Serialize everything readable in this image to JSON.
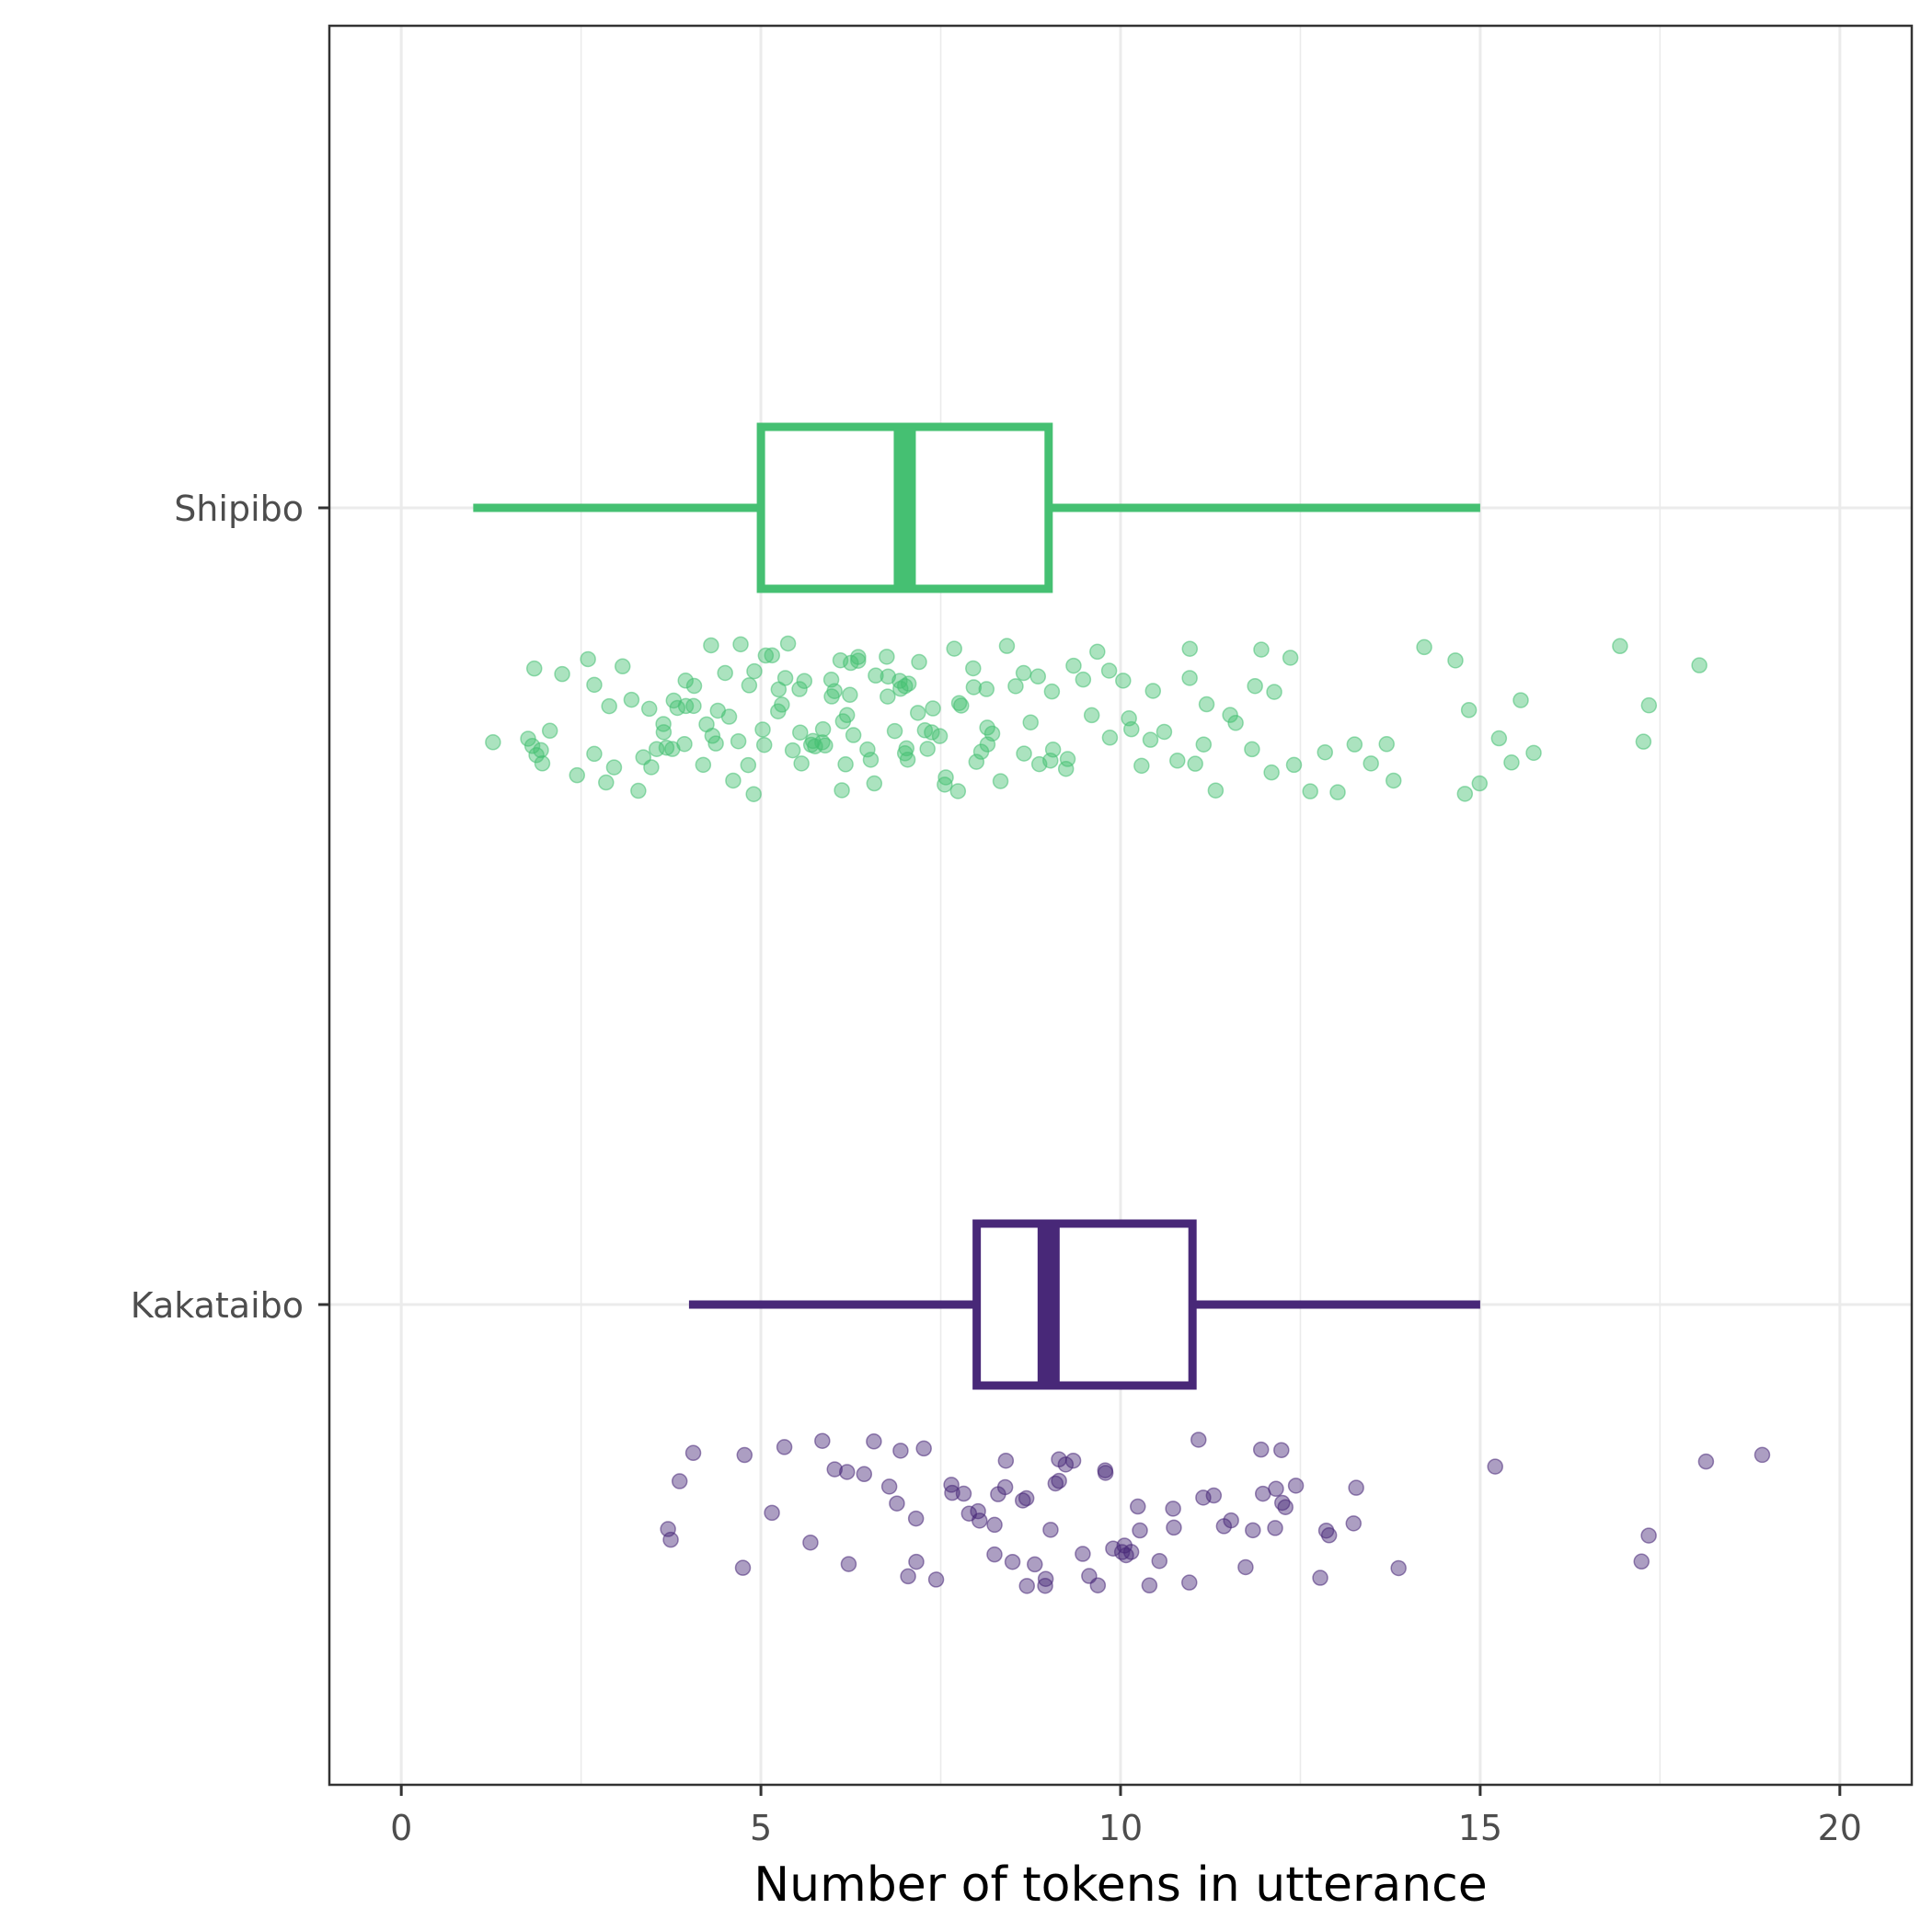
{
  "chart_data": {
    "type": "boxplot",
    "orientation": "horizontal",
    "xlabel": "Number of tokens in utterance",
    "ylabel": "",
    "xlim": [
      -1,
      21
    ],
    "x_ticks": [
      0,
      5,
      10,
      15,
      20
    ],
    "x_tick_labels": [
      "0",
      "5",
      "10",
      "15",
      "20"
    ],
    "grid": true,
    "legend": "none",
    "categories": [
      "Shipibo",
      "Kakataibo"
    ],
    "series": [
      {
        "name": "Shipibo",
        "color": "#45c072",
        "box": {
          "whisker_low": 1,
          "q1": 5,
          "median": 7,
          "q3": 9,
          "whisker_high": 15
        },
        "jitter_points": [
          1.3,
          1.7,
          1.8,
          1.8,
          1.9,
          1.9,
          2.0,
          2.1,
          2.2,
          2.4,
          2.6,
          2.7,
          2.7,
          2.8,
          2.9,
          3.0,
          3.1,
          3.2,
          3.3,
          3.4,
          3.4,
          3.5,
          3.6,
          3.6,
          3.7,
          3.7,
          3.8,
          3.8,
          3.9,
          3.9,
          4.0,
          4.0,
          4.1,
          4.1,
          4.2,
          4.2,
          4.3,
          4.3,
          4.4,
          4.4,
          4.5,
          4.5,
          4.6,
          4.7,
          4.7,
          4.8,
          4.8,
          4.9,
          4.9,
          5.0,
          5.0,
          5.1,
          5.1,
          5.2,
          5.2,
          5.3,
          5.3,
          5.4,
          5.4,
          5.5,
          5.5,
          5.6,
          5.6,
          5.7,
          5.7,
          5.8,
          5.8,
          5.9,
          5.9,
          6.0,
          6.0,
          6.0,
          6.1,
          6.1,
          6.1,
          6.2,
          6.2,
          6.2,
          6.3,
          6.3,
          6.4,
          6.4,
          6.5,
          6.5,
          6.6,
          6.6,
          6.7,
          6.7,
          6.8,
          6.8,
          6.9,
          6.9,
          7.0,
          7.0,
          7.0,
          7.1,
          7.1,
          7.2,
          7.2,
          7.3,
          7.3,
          7.4,
          7.4,
          7.5,
          7.5,
          7.6,
          7.7,
          7.7,
          7.8,
          7.8,
          7.9,
          7.9,
          8.0,
          8.0,
          8.1,
          8.1,
          8.2,
          8.2,
          8.3,
          8.4,
          8.5,
          8.6,
          8.7,
          8.7,
          8.8,
          8.9,
          9.0,
          9.0,
          9.1,
          9.2,
          9.3,
          9.4,
          9.5,
          9.6,
          9.7,
          9.8,
          9.9,
          10.0,
          10.1,
          10.2,
          10.3,
          10.4,
          10.5,
          10.6,
          10.8,
          10.9,
          11.0,
          11.0,
          11.1,
          11.2,
          11.3,
          11.5,
          11.6,
          11.8,
          11.9,
          12.0,
          12.1,
          12.2,
          12.3,
          12.4,
          12.6,
          12.8,
          13.0,
          13.3,
          13.5,
          13.7,
          13.8,
          14.2,
          14.7,
          14.8,
          14.9,
          15.0,
          15.2,
          15.4,
          15.6,
          15.8,
          16.9,
          17.3,
          17.3,
          18.1
        ]
      },
      {
        "name": "Kakataibo",
        "color": "#482878",
        "box": {
          "whisker_low": 4,
          "q1": 8,
          "median": 9,
          "q3": 11,
          "whisker_high": 15
        },
        "jitter_points": [
          3.7,
          3.8,
          3.9,
          4.1,
          4.8,
          4.8,
          5.1,
          5.3,
          5.7,
          5.9,
          6.0,
          6.2,
          6.2,
          6.4,
          6.6,
          6.8,
          6.9,
          7.0,
          7.1,
          7.1,
          7.2,
          7.3,
          7.4,
          7.6,
          7.7,
          7.8,
          7.9,
          8.0,
          8.1,
          8.2,
          8.2,
          8.3,
          8.4,
          8.4,
          8.5,
          8.6,
          8.7,
          8.7,
          8.8,
          8.9,
          9.0,
          9.0,
          9.1,
          9.1,
          9.2,
          9.3,
          9.3,
          9.5,
          9.6,
          9.7,
          9.8,
          9.8,
          9.9,
          10.0,
          10.0,
          10.1,
          10.2,
          10.3,
          10.3,
          10.4,
          10.5,
          10.7,
          10.8,
          11.0,
          11.1,
          11.2,
          11.3,
          11.4,
          11.6,
          11.8,
          11.9,
          12.0,
          12.0,
          12.1,
          12.1,
          12.2,
          12.2,
          12.3,
          12.4,
          12.8,
          12.9,
          12.9,
          13.3,
          13.3,
          13.9,
          15.2,
          17.2,
          17.3,
          18.1,
          18.9
        ]
      }
    ]
  }
}
